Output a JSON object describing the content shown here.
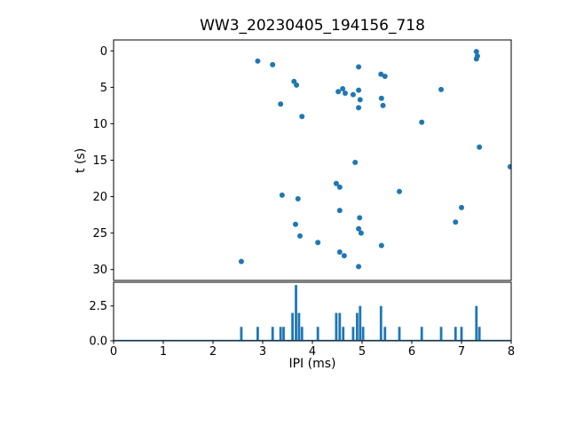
{
  "figure": {
    "background": "#ffffff"
  },
  "chart_data": [
    {
      "type": "scatter",
      "title": "WW3_20230405_194156_718",
      "xlabel": "",
      "ylabel": "t (s)",
      "xlim": [
        0,
        8
      ],
      "ylim": [
        -1.5,
        31.5
      ],
      "y_axis_inverted": true,
      "y_ticks": [
        0,
        5,
        10,
        15,
        20,
        25,
        30
      ],
      "grid": false,
      "legend": "none",
      "marker_color": "#1f77b4",
      "points": [
        [
          2.9,
          1.4
        ],
        [
          3.2,
          1.9
        ],
        [
          7.3,
          0.1
        ],
        [
          7.32,
          0.7
        ],
        [
          7.3,
          1.1
        ],
        [
          4.93,
          2.2
        ],
        [
          5.38,
          3.2
        ],
        [
          5.46,
          3.5
        ],
        [
          3.63,
          4.2
        ],
        [
          3.68,
          4.7
        ],
        [
          4.52,
          5.6
        ],
        [
          4.61,
          5.2
        ],
        [
          4.66,
          5.8
        ],
        [
          4.82,
          6.0
        ],
        [
          4.93,
          5.4
        ],
        [
          6.59,
          5.3
        ],
        [
          4.96,
          6.7
        ],
        [
          5.39,
          6.5
        ],
        [
          3.36,
          7.3
        ],
        [
          4.93,
          7.8
        ],
        [
          5.42,
          7.5
        ],
        [
          3.79,
          9.0
        ],
        [
          6.2,
          9.8
        ],
        [
          7.36,
          13.2
        ],
        [
          4.86,
          15.3
        ],
        [
          7.98,
          15.9
        ],
        [
          4.48,
          18.2
        ],
        [
          4.55,
          18.7
        ],
        [
          5.75,
          19.3
        ],
        [
          3.39,
          19.8
        ],
        [
          3.71,
          20.3
        ],
        [
          4.55,
          21.9
        ],
        [
          7.0,
          21.5
        ],
        [
          4.95,
          22.9
        ],
        [
          6.88,
          23.5
        ],
        [
          3.66,
          23.8
        ],
        [
          4.93,
          24.4
        ],
        [
          4.98,
          25.0
        ],
        [
          3.75,
          25.4
        ],
        [
          4.11,
          26.3
        ],
        [
          5.39,
          26.7
        ],
        [
          4.55,
          27.6
        ],
        [
          4.64,
          28.1
        ],
        [
          2.57,
          28.9
        ],
        [
          4.93,
          29.6
        ]
      ]
    },
    {
      "type": "bar",
      "title": "",
      "xlabel": "IPI (ms)",
      "ylabel": "",
      "xlim": [
        0,
        8
      ],
      "ylim": [
        0,
        4.2
      ],
      "x_ticks": [
        0,
        1,
        2,
        3,
        4,
        5,
        6,
        7,
        8
      ],
      "y_ticks": [
        0,
        2.5
      ],
      "y_tick_labels": [
        "0.0",
        "2.5"
      ],
      "grid": false,
      "legend": "none",
      "bar_color": "#1f77b4",
      "bar_width": 0.05,
      "bars": [
        {
          "x": 2.57,
          "h": 1
        },
        {
          "x": 2.9,
          "h": 1
        },
        {
          "x": 3.2,
          "h": 1
        },
        {
          "x": 3.36,
          "h": 1
        },
        {
          "x": 3.42,
          "h": 1
        },
        {
          "x": 3.6,
          "h": 2
        },
        {
          "x": 3.67,
          "h": 4
        },
        {
          "x": 3.73,
          "h": 2
        },
        {
          "x": 3.79,
          "h": 1
        },
        {
          "x": 4.11,
          "h": 1
        },
        {
          "x": 4.48,
          "h": 2
        },
        {
          "x": 4.55,
          "h": 2
        },
        {
          "x": 4.62,
          "h": 1
        },
        {
          "x": 4.82,
          "h": 1
        },
        {
          "x": 4.9,
          "h": 2
        },
        {
          "x": 4.96,
          "h": 2.5
        },
        {
          "x": 5.02,
          "h": 1
        },
        {
          "x": 5.38,
          "h": 2.5
        },
        {
          "x": 5.46,
          "h": 1
        },
        {
          "x": 5.75,
          "h": 1
        },
        {
          "x": 6.2,
          "h": 1
        },
        {
          "x": 6.59,
          "h": 1
        },
        {
          "x": 6.88,
          "h": 1
        },
        {
          "x": 7.0,
          "h": 1
        },
        {
          "x": 7.3,
          "h": 2.5
        },
        {
          "x": 7.36,
          "h": 1
        }
      ]
    }
  ]
}
